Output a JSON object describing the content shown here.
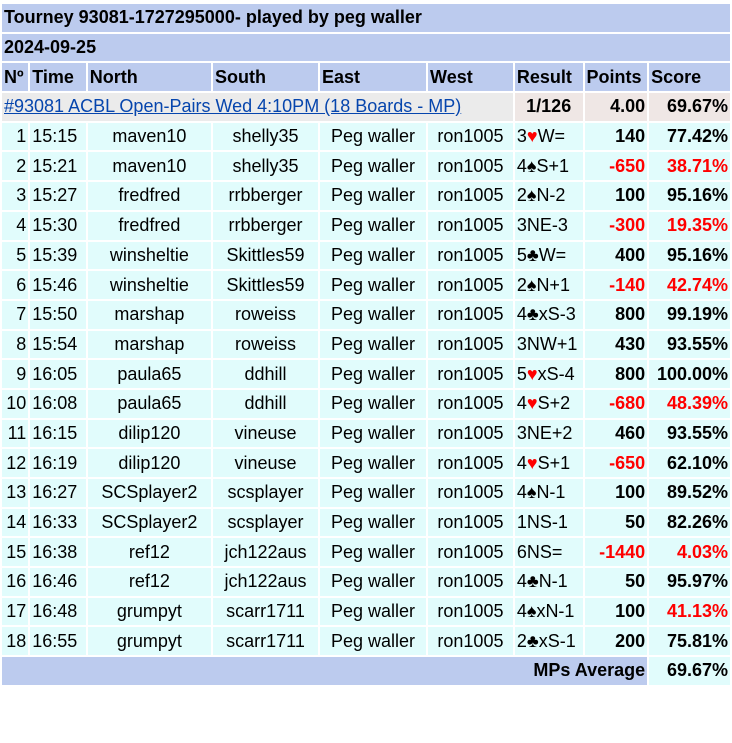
{
  "title": "Tourney 93081-1727295000- played by peg waller",
  "date": "2024-09-25",
  "columns": {
    "num": "Nº",
    "time": "Time",
    "north": "North",
    "south": "South",
    "east": "East",
    "west": "West",
    "result": "Result",
    "points": "Points",
    "score": "Score"
  },
  "event": {
    "title": "#93081 ACBL Open-Pairs Wed 4:10PM (18 Boards - MP)",
    "rank": "1/126",
    "points": "4.00",
    "score": "69.67%"
  },
  "rows": [
    {
      "num": "1",
      "time": "15:15",
      "north": "maven10",
      "south": "shelly35",
      "east": "Peg waller",
      "west": "ron1005",
      "result_pre": "3",
      "suit": "♥",
      "suit_red": true,
      "result_post": "W=",
      "points": "140",
      "points_neg": false,
      "score": "77.42%",
      "score_red": false
    },
    {
      "num": "2",
      "time": "15:21",
      "north": "maven10",
      "south": "shelly35",
      "east": "Peg waller",
      "west": "ron1005",
      "result_pre": "4",
      "suit": "♠",
      "suit_red": false,
      "result_post": "S+1",
      "points": "-650",
      "points_neg": true,
      "score": "38.71%",
      "score_red": true
    },
    {
      "num": "3",
      "time": "15:27",
      "north": "fredfred",
      "south": "rrbberger",
      "east": "Peg waller",
      "west": "ron1005",
      "result_pre": "2",
      "suit": "♠",
      "suit_red": false,
      "result_post": "N-2",
      "points": "100",
      "points_neg": false,
      "score": "95.16%",
      "score_red": false
    },
    {
      "num": "4",
      "time": "15:30",
      "north": "fredfred",
      "south": "rrbberger",
      "east": "Peg waller",
      "west": "ron1005",
      "result_pre": "3NE-3",
      "suit": "",
      "suit_red": false,
      "result_post": "",
      "points": "-300",
      "points_neg": true,
      "score": "19.35%",
      "score_red": true
    },
    {
      "num": "5",
      "time": "15:39",
      "north": "winsheltie",
      "south": "Skittles59",
      "east": "Peg waller",
      "west": "ron1005",
      "result_pre": "5",
      "suit": "♣",
      "suit_red": false,
      "result_post": "W=",
      "points": "400",
      "points_neg": false,
      "score": "95.16%",
      "score_red": false
    },
    {
      "num": "6",
      "time": "15:46",
      "north": "winsheltie",
      "south": "Skittles59",
      "east": "Peg waller",
      "west": "ron1005",
      "result_pre": "2",
      "suit": "♠",
      "suit_red": false,
      "result_post": "N+1",
      "points": "-140",
      "points_neg": true,
      "score": "42.74%",
      "score_red": true
    },
    {
      "num": "7",
      "time": "15:50",
      "north": "marshap",
      "south": "roweiss",
      "east": "Peg waller",
      "west": "ron1005",
      "result_pre": "4",
      "suit": "♣",
      "suit_red": false,
      "result_post": "xS-3",
      "points": "800",
      "points_neg": false,
      "score": "99.19%",
      "score_red": false
    },
    {
      "num": "8",
      "time": "15:54",
      "north": "marshap",
      "south": "roweiss",
      "east": "Peg waller",
      "west": "ron1005",
      "result_pre": "3NW+1",
      "suit": "",
      "suit_red": false,
      "result_post": "",
      "points": "430",
      "points_neg": false,
      "score": "93.55%",
      "score_red": false
    },
    {
      "num": "9",
      "time": "16:05",
      "north": "paula65",
      "south": "ddhill",
      "east": "Peg waller",
      "west": "ron1005",
      "result_pre": "5",
      "suit": "♥",
      "suit_red": true,
      "result_post": "xS-4",
      "points": "800",
      "points_neg": false,
      "score": "100.00%",
      "score_red": false
    },
    {
      "num": "10",
      "time": "16:08",
      "north": "paula65",
      "south": "ddhill",
      "east": "Peg waller",
      "west": "ron1005",
      "result_pre": "4",
      "suit": "♥",
      "suit_red": true,
      "result_post": "S+2",
      "points": "-680",
      "points_neg": true,
      "score": "48.39%",
      "score_red": true
    },
    {
      "num": "11",
      "time": "16:15",
      "north": "dilip120",
      "south": "vineuse",
      "east": "Peg waller",
      "west": "ron1005",
      "result_pre": "3NE+2",
      "suit": "",
      "suit_red": false,
      "result_post": "",
      "points": "460",
      "points_neg": false,
      "score": "93.55%",
      "score_red": false
    },
    {
      "num": "12",
      "time": "16:19",
      "north": "dilip120",
      "south": "vineuse",
      "east": "Peg waller",
      "west": "ron1005",
      "result_pre": "4",
      "suit": "♥",
      "suit_red": true,
      "result_post": "S+1",
      "points": "-650",
      "points_neg": true,
      "score": "62.10%",
      "score_red": false
    },
    {
      "num": "13",
      "time": "16:27",
      "north": "SCSplayer2",
      "south": "scsplayer",
      "east": "Peg waller",
      "west": "ron1005",
      "result_pre": "4",
      "suit": "♠",
      "suit_red": false,
      "result_post": "N-1",
      "points": "100",
      "points_neg": false,
      "score": "89.52%",
      "score_red": false
    },
    {
      "num": "14",
      "time": "16:33",
      "north": "SCSplayer2",
      "south": "scsplayer",
      "east": "Peg waller",
      "west": "ron1005",
      "result_pre": "1NS-1",
      "suit": "",
      "suit_red": false,
      "result_post": "",
      "points": "50",
      "points_neg": false,
      "score": "82.26%",
      "score_red": false
    },
    {
      "num": "15",
      "time": "16:38",
      "north": "ref12",
      "south": "jch122aus",
      "east": "Peg waller",
      "west": "ron1005",
      "result_pre": "6NS=",
      "suit": "",
      "suit_red": false,
      "result_post": "",
      "points": "-1440",
      "points_neg": true,
      "score": "4.03%",
      "score_red": true
    },
    {
      "num": "16",
      "time": "16:46",
      "north": "ref12",
      "south": "jch122aus",
      "east": "Peg waller",
      "west": "ron1005",
      "result_pre": "4",
      "suit": "♣",
      "suit_red": false,
      "result_post": "N-1",
      "points": "50",
      "points_neg": false,
      "score": "95.97%",
      "score_red": false
    },
    {
      "num": "17",
      "time": "16:48",
      "north": "grumpyt",
      "south": "scarr1711",
      "east": "Peg waller",
      "west": "ron1005",
      "result_pre": "4",
      "suit": "♠",
      "suit_red": false,
      "result_post": "xN-1",
      "points": "100",
      "points_neg": false,
      "score": "41.13%",
      "score_red": true
    },
    {
      "num": "18",
      "time": "16:55",
      "north": "grumpyt",
      "south": "scarr1711",
      "east": "Peg waller",
      "west": "ron1005",
      "result_pre": "2",
      "suit": "♣",
      "suit_red": false,
      "result_post": "xS-1",
      "points": "200",
      "points_neg": false,
      "score": "75.81%",
      "score_red": false
    }
  ],
  "footer": {
    "label": "MPs Average",
    "value": "69.67%"
  }
}
